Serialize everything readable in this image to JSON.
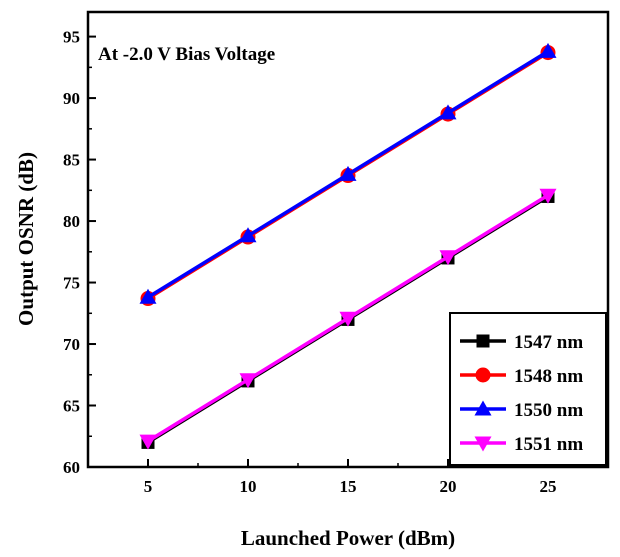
{
  "chart_data": {
    "type": "line",
    "title": "",
    "annotation": "At -2.0 V Bias Voltage",
    "xlabel": "Launched Power (dBm)",
    "ylabel": "Output OSNR (dB)",
    "xlim": [
      2,
      28
    ],
    "ylim": [
      60,
      97
    ],
    "x_ticks": [
      5,
      10,
      15,
      20,
      25
    ],
    "y_ticks": [
      60,
      65,
      70,
      75,
      80,
      85,
      90,
      95
    ],
    "grid": false,
    "legend_position": "bottom-right",
    "x": [
      5,
      10,
      15,
      20,
      25
    ],
    "series": [
      {
        "name": "1547 nm",
        "marker": "square",
        "color": "#000000",
        "values": [
          62.0,
          67.0,
          72.0,
          77.0,
          82.0
        ]
      },
      {
        "name": "1548 nm",
        "marker": "circle",
        "color": "#ff0000",
        "values": [
          73.7,
          78.7,
          83.7,
          88.7,
          93.7
        ]
      },
      {
        "name": "1550 nm",
        "marker": "triangle-up",
        "color": "#0000ff",
        "values": [
          73.8,
          78.8,
          83.8,
          88.8,
          93.8
        ]
      },
      {
        "name": "1551 nm",
        "marker": "triangle-down",
        "color": "#ff00ff",
        "values": [
          62.1,
          67.1,
          72.1,
          77.1,
          82.1
        ]
      }
    ]
  }
}
